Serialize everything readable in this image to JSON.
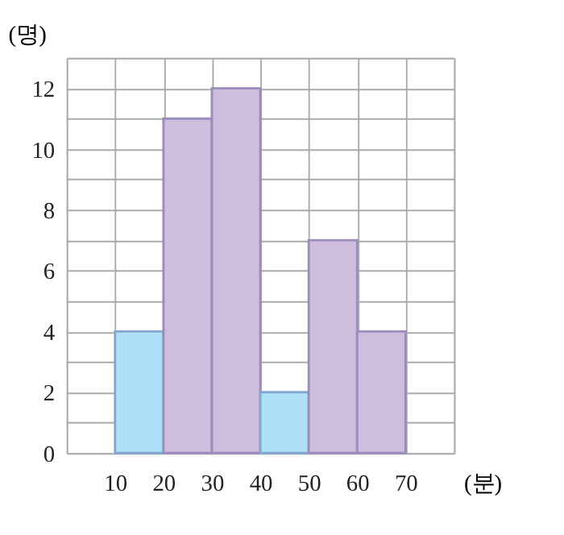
{
  "chart_data": {
    "type": "histogram",
    "xlabel": "(분)",
    "ylabel": "(명)",
    "bins": [
      10,
      20,
      30,
      40,
      50,
      60,
      70
    ],
    "values": [
      4,
      11,
      12,
      2,
      7,
      4
    ],
    "colors": [
      "#aee0f7",
      "#cfbddd",
      "#cfbddd",
      "#aee0f7",
      "#cfbddd",
      "#cfbddd"
    ],
    "xlim": [
      0,
      80
    ],
    "xticks": [
      {
        "value": 0,
        "label": null
      },
      10,
      20,
      30,
      40,
      50,
      60,
      70,
      {
        "value": 80,
        "label": null
      }
    ],
    "ylim": [
      0,
      13
    ],
    "yticks": [
      0,
      {
        "value": 1,
        "label": null
      },
      2,
      {
        "value": 3,
        "label": null
      },
      4,
      {
        "value": 5,
        "label": null
      },
      6,
      {
        "value": 7,
        "label": null
      },
      8,
      {
        "value": 9,
        "label": null
      },
      10,
      {
        "value": 11,
        "label": null
      },
      12,
      {
        "value": 13,
        "label": null
      }
    ],
    "grid": true
  }
}
